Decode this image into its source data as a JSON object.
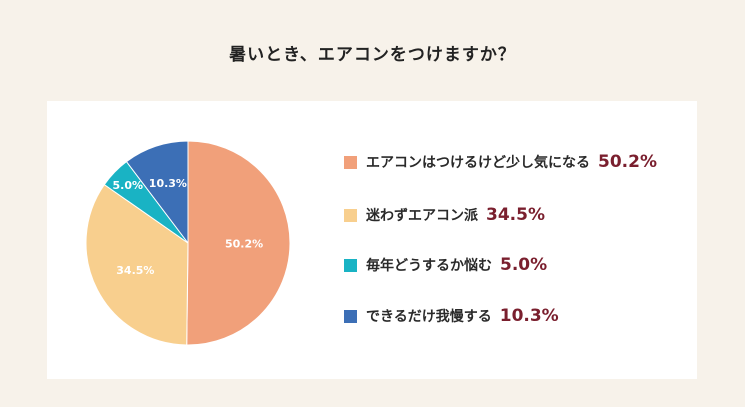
{
  "chart_data": {
    "type": "pie",
    "title": "暑いとき、エアコンをつけますか？",
    "unit": "%",
    "slices": [
      {
        "label": "エアコンはつけるけど少し気になる",
        "value": 50.2,
        "value_label": "50.2%",
        "color": "#f1a07a"
      },
      {
        "label": "迷わずエアコン派",
        "value": 34.5,
        "value_label": "34.5%",
        "color": "#f8cf8e"
      },
      {
        "label": "毎年どうするか悩む",
        "value": 5.0,
        "value_label": "5.0%",
        "color": "#19b3c4"
      },
      {
        "label": "できるだけ我慢する",
        "value": 10.3,
        "value_label": "10.3%",
        "color": "#3c6fb6"
      }
    ],
    "legend_position": "right"
  }
}
